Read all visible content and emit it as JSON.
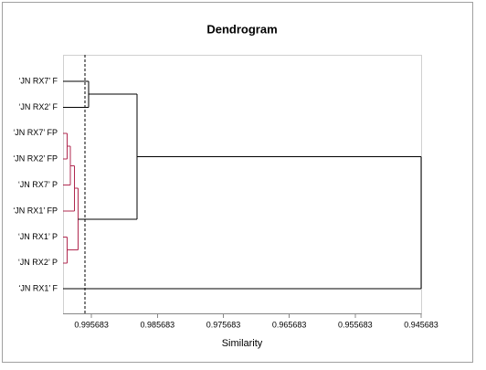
{
  "chart_data": {
    "type": "dendrogram",
    "title": "Dendrogram",
    "x_label": "Similarity",
    "leaves": [
      "‘JN RX7’ F",
      "‘JN RX2’ F",
      "‘JN RX7’ FP",
      "‘JN RX2’ FP",
      "‘JN RX7’ P",
      "‘JN RX1’ FP",
      "‘JN RX1’ P",
      "‘JN RX2’ P",
      "‘JN RX1’ F"
    ],
    "merges": [
      {
        "left": 2,
        "right": 3,
        "height": 0.9994,
        "color": "#b0284f"
      },
      {
        "left": 9,
        "right": 4,
        "height": 0.9989,
        "color": "#b0284f"
      },
      {
        "left": 10,
        "right": 5,
        "height": 0.9983,
        "color": "#b0284f"
      },
      {
        "left": 6,
        "right": 7,
        "height": 0.9994,
        "color": "#b0284f"
      },
      {
        "left": 11,
        "right": 12,
        "height": 0.9977,
        "color": "#b0284f"
      },
      {
        "left": 0,
        "right": 1,
        "height": 0.9961,
        "color": "#000000"
      },
      {
        "left": 14,
        "right": 13,
        "height": 0.9888,
        "color": "#000000"
      },
      {
        "left": 15,
        "right": 8,
        "height": 0.9457,
        "color": "#000000"
      }
    ],
    "cutoff": 0.9967,
    "xlim": [
      1.0,
      0.945683
    ],
    "xticks": [
      0.995683,
      0.985683,
      0.975683,
      0.965683,
      0.955683,
      0.945683
    ]
  }
}
